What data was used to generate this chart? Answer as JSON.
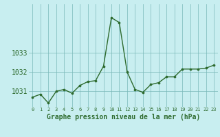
{
  "x": [
    0,
    1,
    2,
    3,
    4,
    5,
    6,
    7,
    8,
    9,
    10,
    11,
    12,
    13,
    14,
    15,
    16,
    17,
    18,
    19,
    20,
    21,
    22,
    23
  ],
  "y": [
    1030.7,
    1030.85,
    1030.4,
    1031.0,
    1031.1,
    1030.9,
    1031.3,
    1031.5,
    1031.55,
    1032.3,
    1034.8,
    1034.55,
    1032.0,
    1031.1,
    1030.95,
    1031.35,
    1031.45,
    1031.75,
    1031.75,
    1032.15,
    1032.15,
    1032.15,
    1032.2,
    1032.35
  ],
  "line_color": "#2d6a2d",
  "marker_color": "#2d6a2d",
  "bg_color": "#c8eef0",
  "grid_color": "#7ab8b8",
  "xlabel": "Graphe pression niveau de la mer (hPa)",
  "xlabel_fontsize": 7,
  "xlabel_color": "#2d6a2d",
  "tick_label_color": "#2d6a2d",
  "ylim_min": 1030.2,
  "ylim_max": 1035.5,
  "ytick_values": [
    1031,
    1032,
    1033
  ],
  "xtick_labels": [
    "0",
    "1",
    "2",
    "3",
    "4",
    "5",
    "6",
    "7",
    "8",
    "9",
    "10",
    "11",
    "12",
    "13",
    "14",
    "15",
    "16",
    "17",
    "18",
    "19",
    "20",
    "21",
    "22",
    "23"
  ],
  "linewidth": 1.0,
  "markersize": 2.2
}
